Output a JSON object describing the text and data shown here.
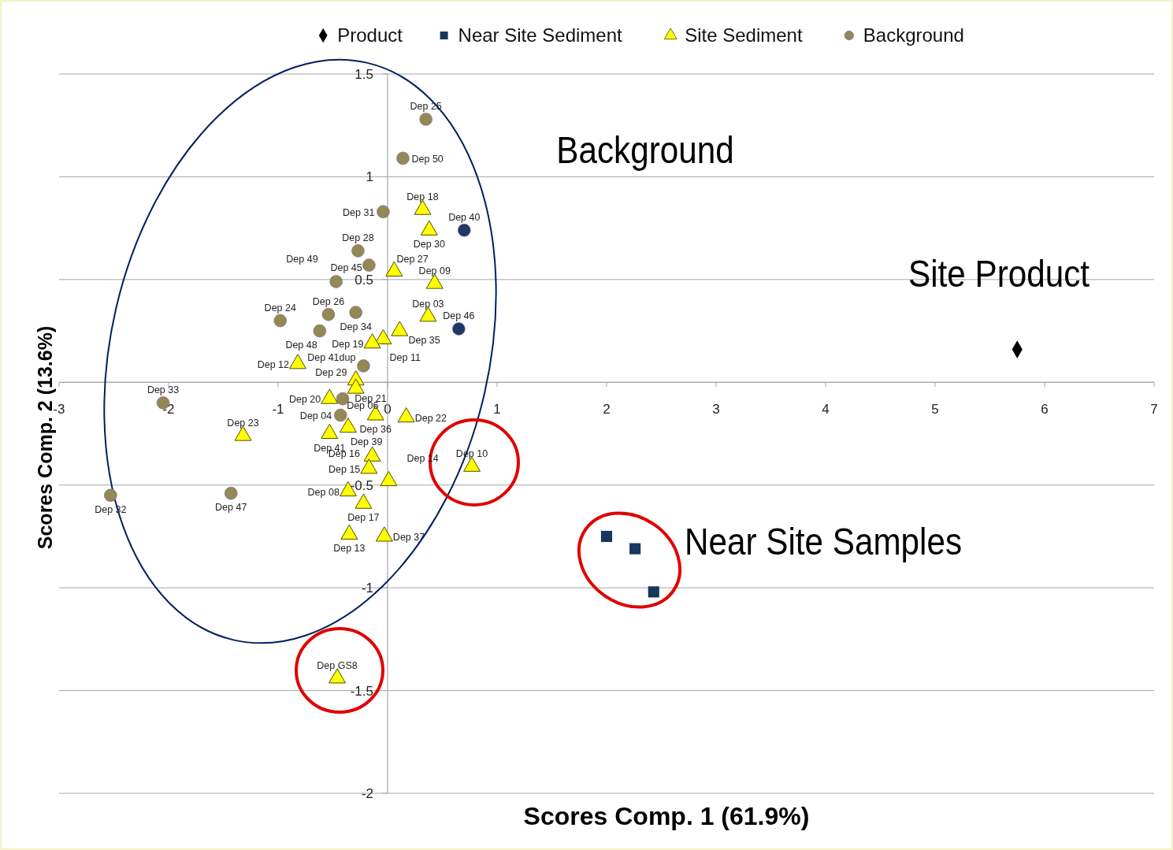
{
  "chart_data": {
    "type": "scatter",
    "xlabel": "Scores Comp. 1 (61.9%)",
    "ylabel": "Scores Comp. 2 (13.6%)",
    "xlim": [
      -3,
      7
    ],
    "ylim": [
      -2,
      1.5
    ],
    "xticks": [
      -3,
      -2,
      -1,
      0,
      1,
      2,
      3,
      4,
      5,
      6,
      7
    ],
    "yticks": [
      -2,
      -1.5,
      -1,
      -0.5,
      {
        "value": 0,
        "label": null
      },
      0.5,
      1,
      1.5
    ],
    "grid": "y",
    "legend": "top",
    "annotations": [
      "Background",
      "Site Product",
      "Near Site Samples"
    ],
    "series": [
      {
        "name": "Product",
        "color": "#000000",
        "marker": "diamond",
        "x": [
          5.75
        ],
        "values": [
          0.16
        ]
      },
      {
        "name": "Near Site Sediment",
        "color": "#17375e",
        "marker": "square",
        "x": [
          2.0,
          2.26,
          2.43
        ],
        "values": [
          -0.75,
          -0.81,
          -1.02
        ]
      },
      {
        "name": "Site Sediment",
        "color": "#ffff00",
        "marker": "triangle",
        "x": [
          0.32,
          0.38,
          0.06,
          0.43,
          0.37,
          0.11,
          -0.04,
          -0.14,
          -0.82,
          -0.29,
          -0.29,
          -0.53,
          -0.11,
          0.17,
          -0.53,
          -0.36,
          -0.14,
          -0.17,
          0.01,
          -0.36,
          -0.22,
          -0.35,
          -0.03,
          0.77,
          -1.32,
          -0.46
        ],
        "values": [
          0.84,
          0.74,
          0.54,
          0.48,
          0.32,
          0.25,
          0.21,
          0.19,
          0.09,
          0.01,
          -0.03,
          -0.08,
          -0.16,
          -0.17,
          -0.25,
          -0.22,
          -0.36,
          -0.42,
          -0.48,
          -0.53,
          -0.59,
          -0.74,
          -0.75,
          -0.41,
          -0.26,
          -1.44
        ],
        "value_labels": [
          "Dep 18",
          "Dep 30",
          "Dep 27",
          "Dep 09",
          "Dep 03",
          "Dep 35",
          "Dep 11",
          "Dep 19",
          "Dep 12",
          "Dep 29",
          "Dep 21",
          "Dep 20",
          "Dep 36",
          "Dep 22",
          "Dep 41",
          "Dep 39",
          "Dep 16",
          "Dep 15",
          "Dep 14",
          "Dep 08",
          "Dep 17",
          "Dep 13",
          "Dep 37",
          "Dep 10",
          "Dep 23",
          "Dep GS8"
        ]
      },
      {
        "name": "Background",
        "color": "#938953",
        "marker": "circle",
        "x": [
          0.35,
          0.14,
          -0.04,
          -0.27,
          -0.17,
          -0.47,
          -0.98,
          -0.54,
          -0.29,
          -0.62,
          -0.22,
          -0.41,
          -0.43,
          -2.05,
          -2.53,
          -1.43
        ],
        "values": [
          1.28,
          1.09,
          0.83,
          0.64,
          0.57,
          0.49,
          0.3,
          0.33,
          0.34,
          0.25,
          0.08,
          -0.08,
          -0.16,
          -0.1,
          -0.55,
          -0.54
        ],
        "value_labels": [
          "Dep 25",
          "Dep 50",
          "Dep 31",
          "Dep 28",
          "Dep 45",
          "Dep 49",
          "Dep 24",
          "Dep 26",
          "Dep 34",
          "Dep 48",
          "Dep 41dup",
          "Dep 06",
          "Dep 04",
          "Dep 33",
          "Dep 32",
          "Dep 47"
        ]
      },
      {
        "color": "#1f3864",
        "marker": "circle",
        "x": [
          0.7,
          0.65
        ],
        "values": [
          0.74,
          0.26
        ],
        "value_labels": [
          "Dep 40",
          "Dep 46"
        ]
      }
    ]
  }
}
